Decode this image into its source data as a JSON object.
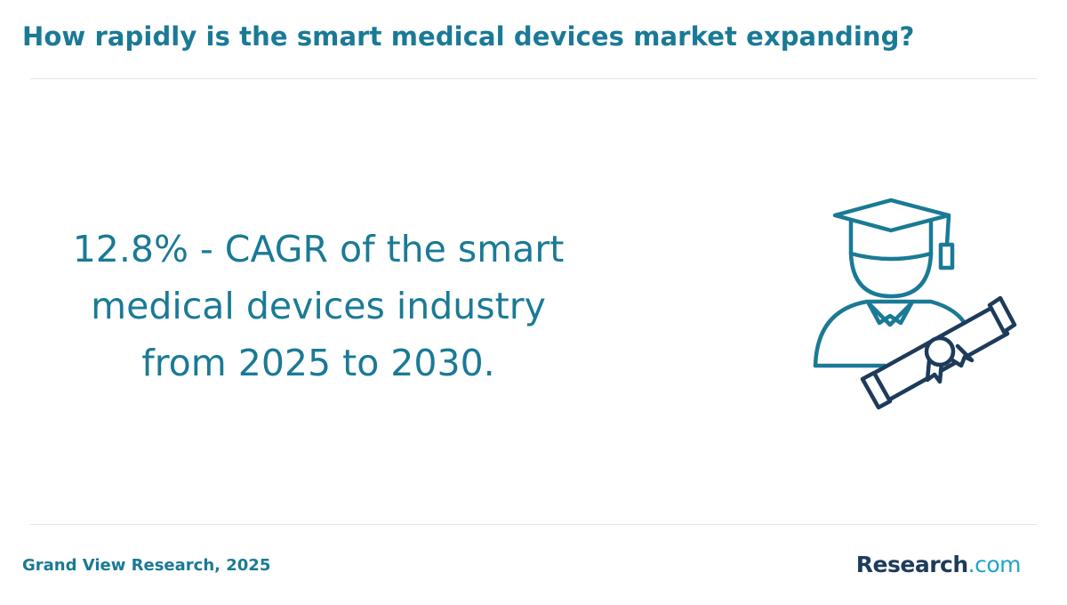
{
  "header": {
    "title": "How rapidly is the smart medical devices market expanding?"
  },
  "main": {
    "stat_lines": [
      "12.8% - CAGR of the smart",
      "medical devices industry",
      "from 2025 to 2030."
    ],
    "illustration_icon": "graduate-with-diploma-icon"
  },
  "footer": {
    "source": "Grand View Research, 2025",
    "brand_main": "Research",
    "brand_domain": ".com"
  },
  "colors": {
    "accent": "#1a7a96",
    "icon_primary": "#1a7a96",
    "icon_secondary": "#1d3b5a",
    "brand_dark": "#1d3b5a",
    "brand_light": "#1ea6c5",
    "divider": "#e4e4e4"
  }
}
